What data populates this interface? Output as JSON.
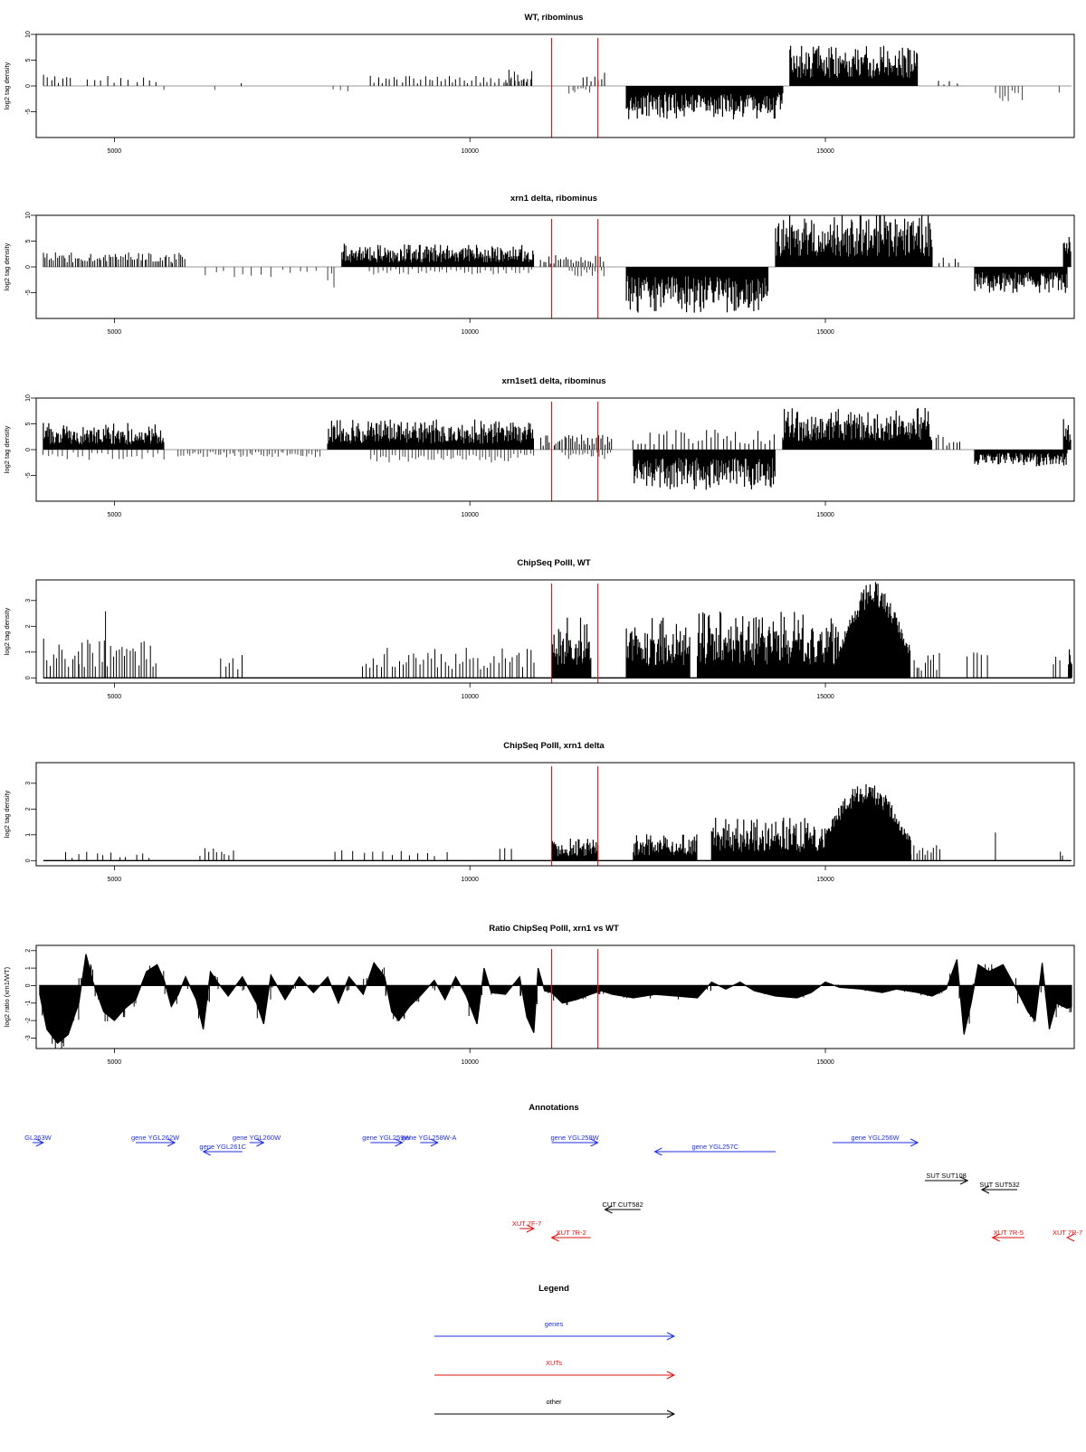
{
  "colors": {
    "gene": "#1f2fe0",
    "xut": "#e21010",
    "other": "#000000",
    "marker": "#e21010",
    "bar": "#000000"
  },
  "chart_data": [
    {
      "type": "bar",
      "title": "WT, ribominus",
      "ylabel": "log2 tag density",
      "xlim": [
        3900,
        18500
      ],
      "ylim": [
        -10,
        10
      ],
      "xticks": [
        5000,
        10000,
        15000
      ],
      "yticks": [
        -5,
        0,
        5,
        10
      ],
      "markers_x": [
        11150,
        11800
      ],
      "segments": [
        {
          "x0": 4000,
          "x1": 4400,
          "shape": "sparse",
          "y": 2.2,
          "step": 55
        },
        {
          "x0": 4600,
          "x1": 5600,
          "shape": "sparse",
          "y": 2.0,
          "step": 100
        },
        {
          "x0": 5700,
          "x1": 5700,
          "shape": "sparse",
          "y": -2.5,
          "step": 100
        },
        {
          "x0": 6400,
          "x1": 6400,
          "shape": "sparse",
          "y": -1,
          "step": 100
        },
        {
          "x0": 6800,
          "x1": 6800,
          "shape": "sparse",
          "y": 1,
          "step": 100
        },
        {
          "x0": 8100,
          "x1": 8300,
          "shape": "sparse",
          "y": -1.5,
          "step": 100
        },
        {
          "x0": 8600,
          "x1": 10900,
          "shape": "sparse",
          "y": 2.0,
          "step": 55
        },
        {
          "x0": 10500,
          "x1": 10900,
          "shape": "sparse",
          "y": 3.5,
          "step": 45
        },
        {
          "x0": 11400,
          "x1": 11700,
          "shape": "sparse",
          "y": -1.5,
          "step": 40
        },
        {
          "x0": 11600,
          "x1": 11900,
          "shape": "sparse",
          "y": 2.8,
          "step": 50
        },
        {
          "x0": 12200,
          "x1": 14400,
          "shape": "dense",
          "y": -5.0
        },
        {
          "x0": 14500,
          "x1": 16300,
          "shape": "dense",
          "y": 6.0
        },
        {
          "x0": 16600,
          "x1": 16900,
          "shape": "sparse",
          "y": 1.0,
          "step": 80
        },
        {
          "x0": 17400,
          "x1": 17800,
          "shape": "sparse",
          "y": -3.0,
          "step": 45
        },
        {
          "x0": 18300,
          "x1": 18300,
          "shape": "sparse",
          "y": -1.5,
          "step": 100
        }
      ]
    },
    {
      "type": "bar",
      "title": "xrn1 delta, ribominus",
      "ylabel": "log2 tag density",
      "xlim": [
        3900,
        18500
      ],
      "ylim": [
        -10,
        10
      ],
      "xticks": [
        5000,
        10000,
        15000
      ],
      "yticks": [
        -5,
        0,
        5,
        10
      ],
      "markers_x": [
        11150,
        11800
      ],
      "segments": [
        {
          "x0": 4000,
          "x1": 6000,
          "shape": "sparse",
          "y": 2.8,
          "step": 28
        },
        {
          "x0": 6300,
          "x1": 7900,
          "shape": "sparse",
          "y": -2.0,
          "step": 130
        },
        {
          "x0": 8000,
          "x1": 8100,
          "shape": "sparse",
          "y": -4.5,
          "step": 50
        },
        {
          "x0": 8200,
          "x1": 10900,
          "shape": "dense",
          "y": 3.5
        },
        {
          "x0": 8600,
          "x1": 10900,
          "shape": "sparse",
          "y": -1.5,
          "step": 60
        },
        {
          "x0": 11000,
          "x1": 11900,
          "shape": "sparse",
          "y": 2.5,
          "step": 35
        },
        {
          "x0": 11400,
          "x1": 11900,
          "shape": "sparse",
          "y": -2.0,
          "step": 40
        },
        {
          "x0": 12200,
          "x1": 14200,
          "shape": "dense",
          "y": -7.0
        },
        {
          "x0": 14300,
          "x1": 16500,
          "shape": "dense",
          "y": 8.0
        },
        {
          "x0": 16600,
          "x1": 16900,
          "shape": "sparse",
          "y": 2.0,
          "step": 70
        },
        {
          "x0": 17100,
          "x1": 18400,
          "shape": "dense",
          "y": -4.0
        },
        {
          "x0": 18350,
          "x1": 18450,
          "shape": "dense",
          "y": 5.0
        }
      ]
    },
    {
      "type": "bar",
      "title": "xrn1set1 delta, ribominus",
      "ylabel": "log2 tag density",
      "xlim": [
        3900,
        18500
      ],
      "ylim": [
        -10,
        10
      ],
      "xticks": [
        5000,
        10000,
        15000
      ],
      "yticks": [
        -5,
        0,
        5,
        10
      ],
      "markers_x": [
        11150,
        11800
      ],
      "segments": [
        {
          "x0": 4000,
          "x1": 5700,
          "shape": "dense",
          "y": 4.0
        },
        {
          "x0": 4000,
          "x1": 5700,
          "shape": "sparse",
          "y": -2.0,
          "step": 70
        },
        {
          "x0": 5900,
          "x1": 7900,
          "shape": "sparse",
          "y": -1.5,
          "step": 40
        },
        {
          "x0": 8000,
          "x1": 10900,
          "shape": "dense",
          "y": 4.5
        },
        {
          "x0": 8600,
          "x1": 10900,
          "shape": "sparse",
          "y": -2.5,
          "step": 45
        },
        {
          "x0": 11000,
          "x1": 12000,
          "shape": "sparse",
          "y": 3.0,
          "step": 30
        },
        {
          "x0": 11300,
          "x1": 12000,
          "shape": "sparse",
          "y": -2.0,
          "step": 40
        },
        {
          "x0": 12300,
          "x1": 14300,
          "shape": "dense",
          "y": -6.0
        },
        {
          "x0": 12300,
          "x1": 14300,
          "shape": "sparse",
          "y": 4.0,
          "step": 60
        },
        {
          "x0": 14400,
          "x1": 16500,
          "shape": "dense",
          "y": 6.5
        },
        {
          "x0": 16500,
          "x1": 16900,
          "shape": "sparse",
          "y": 3.0,
          "step": 50
        },
        {
          "x0": 17100,
          "x1": 18400,
          "shape": "dense",
          "y": -2.5
        },
        {
          "x0": 18350,
          "x1": 18450,
          "shape": "dense",
          "y": 5.0
        }
      ]
    },
    {
      "type": "bar",
      "title": "ChipSeq PolII, WT",
      "ylabel": "log2 tag density",
      "xlim": [
        3900,
        18500
      ],
      "ylim": [
        -0.2,
        3.8
      ],
      "xticks": [
        5000,
        10000,
        15000
      ],
      "yticks": [
        0,
        1,
        2,
        3
      ],
      "markers_x": [
        11150,
        11800
      ],
      "baseline": true,
      "segments": [
        {
          "x0": 4000,
          "x1": 4500,
          "shape": "sparse",
          "y": 1.6,
          "step": 45
        },
        {
          "x0": 4500,
          "x1": 5600,
          "shape": "sparse",
          "y": 1.5,
          "step": 40
        },
        {
          "x0": 4900,
          "x1": 4950,
          "shape": "sparse",
          "y": 3.2,
          "step": 100
        },
        {
          "x0": 6500,
          "x1": 6800,
          "shape": "sparse",
          "y": 1.0,
          "step": 60
        },
        {
          "x0": 8500,
          "x1": 10900,
          "shape": "sparse",
          "y": 1.2,
          "step": 50
        },
        {
          "x0": 11150,
          "x1": 11700,
          "shape": "dense",
          "y": 1.8
        },
        {
          "x0": 12200,
          "x1": 13100,
          "shape": "dense",
          "y": 1.8
        },
        {
          "x0": 13200,
          "x1": 15200,
          "shape": "dense",
          "y": 2.0
        },
        {
          "x0": 15200,
          "x1": 16200,
          "shape": "dense",
          "y": 3.4,
          "profile": "hump"
        },
        {
          "x0": 16200,
          "x1": 16600,
          "shape": "sparse",
          "y": 1.0,
          "step": 40
        },
        {
          "x0": 17000,
          "x1": 17300,
          "shape": "sparse",
          "y": 1.0,
          "step": 70
        },
        {
          "x0": 18200,
          "x1": 18300,
          "shape": "sparse",
          "y": 1.0,
          "step": 50
        },
        {
          "x0": 18420,
          "x1": 18470,
          "shape": "dense",
          "y": 1.0
        }
      ]
    },
    {
      "type": "bar",
      "title": "ChipSeq PolII, xrn1 delta",
      "ylabel": "log2 tag density",
      "xlim": [
        3900,
        18500
      ],
      "ylim": [
        -0.2,
        3.8
      ],
      "xticks": [
        5000,
        10000,
        15000
      ],
      "yticks": [
        0,
        1,
        2,
        3
      ],
      "markers_x": [
        11150,
        11800
      ],
      "baseline": true,
      "segments": [
        {
          "x0": 4300,
          "x1": 5600,
          "shape": "sparse",
          "y": 0.35,
          "step": 110
        },
        {
          "x0": 6200,
          "x1": 6700,
          "shape": "sparse",
          "y": 0.5,
          "step": 60
        },
        {
          "x0": 8100,
          "x1": 9700,
          "shape": "sparse",
          "y": 0.4,
          "step": 130
        },
        {
          "x0": 10400,
          "x1": 10600,
          "shape": "sparse",
          "y": 0.7,
          "step": 100
        },
        {
          "x0": 11150,
          "x1": 11800,
          "shape": "dense",
          "y": 0.7
        },
        {
          "x0": 12300,
          "x1": 13200,
          "shape": "dense",
          "y": 0.8
        },
        {
          "x0": 13400,
          "x1": 15000,
          "shape": "dense",
          "y": 1.3
        },
        {
          "x0": 15000,
          "x1": 16200,
          "shape": "dense",
          "y": 2.8,
          "profile": "hump"
        },
        {
          "x0": 16200,
          "x1": 16600,
          "shape": "sparse",
          "y": 0.6,
          "step": 40
        },
        {
          "x0": 17400,
          "x1": 17400,
          "shape": "sparse",
          "y": 1.1,
          "step": 50
        },
        {
          "x0": 18300,
          "x1": 18350,
          "shape": "sparse",
          "y": 0.7,
          "step": 40
        }
      ]
    },
    {
      "type": "area",
      "title": "Ratio ChipSeq PolII, xrn1 vs WT",
      "ylabel": "log2 ratio (xrn1/WT)",
      "xlim": [
        3900,
        18500
      ],
      "ylim": [
        -3.6,
        2.3
      ],
      "xticks": [
        5000,
        10000,
        15000
      ],
      "yticks": [
        -3,
        -2,
        -1,
        0,
        1,
        2
      ],
      "markers_x": [
        11150,
        11800
      ],
      "profile": [
        [
          3950,
          -0.5
        ],
        [
          4050,
          -2.5
        ],
        [
          4200,
          -3.3
        ],
        [
          4350,
          -2.8
        ],
        [
          4500,
          -1.0
        ],
        [
          4600,
          1.8
        ],
        [
          4700,
          0.2
        ],
        [
          4850,
          -1.5
        ],
        [
          5000,
          -2.0
        ],
        [
          5150,
          -1.3
        ],
        [
          5300,
          -0.8
        ],
        [
          5450,
          0.8
        ],
        [
          5600,
          1.2
        ],
        [
          5700,
          0.3
        ],
        [
          5800,
          -1.2
        ],
        [
          5900,
          -0.5
        ],
        [
          6000,
          0.5
        ],
        [
          6150,
          -0.8
        ],
        [
          6250,
          -2.5
        ],
        [
          6350,
          0.8
        ],
        [
          6450,
          0.2
        ],
        [
          6600,
          -0.6
        ],
        [
          6800,
          0.5
        ],
        [
          7000,
          -1.0
        ],
        [
          7100,
          -2.2
        ],
        [
          7200,
          0.6
        ],
        [
          7400,
          -0.8
        ],
        [
          7600,
          0.5
        ],
        [
          7800,
          -0.4
        ],
        [
          8000,
          0.5
        ],
        [
          8150,
          -1.0
        ],
        [
          8300,
          0.5
        ],
        [
          8500,
          -0.5
        ],
        [
          8650,
          1.3
        ],
        [
          8800,
          0.5
        ],
        [
          8900,
          -1.5
        ],
        [
          9000,
          -2.0
        ],
        [
          9150,
          -1.2
        ],
        [
          9300,
          -0.6
        ],
        [
          9500,
          0.3
        ],
        [
          9650,
          -0.8
        ],
        [
          9800,
          0.5
        ],
        [
          9950,
          -0.6
        ],
        [
          10100,
          -2.2
        ],
        [
          10200,
          1.0
        ],
        [
          10300,
          -0.4
        ],
        [
          10500,
          -0.5
        ],
        [
          10700,
          0.5
        ],
        [
          10800,
          -1.8
        ],
        [
          10900,
          -2.7
        ],
        [
          10960,
          1.0
        ],
        [
          11050,
          -0.3
        ],
        [
          11150,
          -0.4
        ],
        [
          11300,
          -1.0
        ],
        [
          11500,
          -0.8
        ],
        [
          11700,
          -0.5
        ],
        [
          11850,
          -0.3
        ],
        [
          12000,
          -0.5
        ],
        [
          12300,
          -0.7
        ],
        [
          12600,
          -0.5
        ],
        [
          12900,
          -0.6
        ],
        [
          13200,
          -0.7
        ],
        [
          13400,
          0.2
        ],
        [
          13600,
          -0.2
        ],
        [
          13800,
          0.2
        ],
        [
          14000,
          -0.3
        ],
        [
          14300,
          -0.6
        ],
        [
          14600,
          -0.7
        ],
        [
          14800,
          -0.4
        ],
        [
          15000,
          0.2
        ],
        [
          15200,
          -0.1
        ],
        [
          15500,
          -0.2
        ],
        [
          15800,
          -0.4
        ],
        [
          16000,
          -0.2
        ],
        [
          16300,
          -0.4
        ],
        [
          16500,
          -0.6
        ],
        [
          16700,
          -0.2
        ],
        [
          16850,
          1.5
        ],
        [
          16950,
          -2.8
        ],
        [
          17050,
          -1.0
        ],
        [
          17150,
          1.2
        ],
        [
          17300,
          0.8
        ],
        [
          17500,
          1.2
        ],
        [
          17700,
          -0.3
        ],
        [
          17850,
          -1.5
        ],
        [
          17950,
          -2.0
        ],
        [
          18050,
          1.3
        ],
        [
          18150,
          -2.5
        ],
        [
          18250,
          -1.0
        ],
        [
          18400,
          -1.3
        ],
        [
          18460,
          -1.2
        ]
      ]
    }
  ],
  "annotations": {
    "title": "Annotations",
    "items": [
      {
        "label": "GL263W",
        "type": "gene",
        "dir": "right",
        "x0": 3380,
        "x1": 4000,
        "row": 0
      },
      {
        "label": "gene YGL262W",
        "type": "gene",
        "dir": "right",
        "x0": 5300,
        "x1": 5850,
        "row": 0
      },
      {
        "label": "gene YGL261C",
        "type": "gene",
        "dir": "left",
        "x0": 6250,
        "x1": 6800,
        "row": 1
      },
      {
        "label": "gene YGL260W",
        "type": "gene",
        "dir": "right",
        "x0": 6900,
        "x1": 7100,
        "row": 0
      },
      {
        "label": "gene YGL259W",
        "type": "gene",
        "dir": "right",
        "x0": 8600,
        "x1": 9050,
        "row": 0
      },
      {
        "label": "gene YGL258W-A",
        "type": "gene",
        "dir": "right",
        "x0": 9300,
        "x1": 9550,
        "row": 0
      },
      {
        "label": "gene YGL258W",
        "type": "gene",
        "dir": "right",
        "x0": 11150,
        "x1": 11800,
        "row": 0
      },
      {
        "label": "gene YGL257C",
        "type": "gene",
        "dir": "left",
        "x0": 12600,
        "x1": 14300,
        "row": 1
      },
      {
        "label": "gene YGL256W",
        "type": "gene",
        "dir": "right",
        "x0": 15100,
        "x1": 16300,
        "row": 0
      },
      {
        "label": "SUT SUT108",
        "type": "other",
        "dir": "right",
        "x0": 16400,
        "x1": 17000,
        "row": 3
      },
      {
        "label": "SUT SUT532",
        "type": "other",
        "dir": "left",
        "x0": 17200,
        "x1": 17700,
        "row": 4
      },
      {
        "label": "CUT CUT582",
        "type": "other",
        "dir": "left",
        "x0": 11900,
        "x1": 12400,
        "row": 5
      },
      {
        "label": "XUT 7F-7",
        "type": "xut",
        "dir": "right",
        "x0": 10700,
        "x1": 10900,
        "row": 6
      },
      {
        "label": "XUT 7R-2",
        "type": "xut",
        "dir": "left",
        "x0": 11150,
        "x1": 11700,
        "row": 7
      },
      {
        "label": "XUT 7R-5",
        "type": "xut",
        "dir": "left",
        "x0": 17350,
        "x1": 17800,
        "row": 7
      },
      {
        "label": "XUT 7R-7",
        "type": "xut",
        "dir": "left",
        "x0": 18400,
        "x1": 18800,
        "row": 7
      }
    ]
  },
  "legend": {
    "title": "Legend",
    "items": [
      {
        "label": "genes",
        "type": "gene"
      },
      {
        "label": "XUTs",
        "type": "xut"
      },
      {
        "label": "other",
        "type": "other"
      }
    ]
  }
}
